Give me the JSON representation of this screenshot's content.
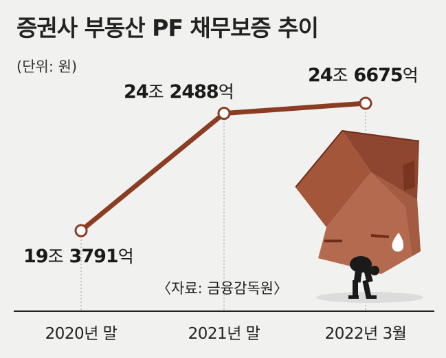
{
  "colors": {
    "background": "#f1f1ef",
    "line": "#8a3d23",
    "marker_fill": "#ffffff",
    "text": "#222222",
    "house_front": "#b36a4e",
    "house_roof": "#9b5038",
    "house_dark": "#6e2d18"
  },
  "illustration": "house-carried-on-back-of-person-icon",
  "source_note": "〈자료: 금융감독원〉",
  "chart_data": {
    "type": "line",
    "title": "증권사 부동산 PF 채무보증 추이",
    "unit_label": "(단위: 원)",
    "categories": [
      "2020년 말",
      "2021년 말",
      "2022년 3월"
    ],
    "values_eok": [
      193791,
      242488,
      246675
    ],
    "data_labels": [
      {
        "jo": "19",
        "jo_unit": "조",
        "eok": "3791",
        "eok_unit": "억"
      },
      {
        "jo": "24",
        "jo_unit": "조",
        "eok": "2488",
        "eok_unit": "억"
      },
      {
        "jo": "24",
        "jo_unit": "조",
        "eok": "6675",
        "eok_unit": "억"
      }
    ],
    "xlabel": "",
    "ylabel": "",
    "grid": false,
    "legend": "none"
  }
}
